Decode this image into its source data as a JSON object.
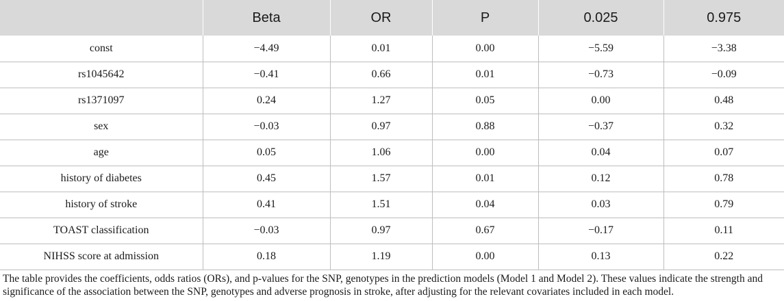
{
  "table": {
    "headers": [
      "",
      "Beta",
      "OR",
      "P",
      "0.025",
      "0.975"
    ],
    "rows": [
      [
        "const",
        "−4.49",
        "0.01",
        "0.00",
        "−5.59",
        "−3.38"
      ],
      [
        "rs1045642",
        "−0.41",
        "0.66",
        "0.01",
        "−0.73",
        "−0.09"
      ],
      [
        "rs1371097",
        "0.24",
        "1.27",
        "0.05",
        "0.00",
        "0.48"
      ],
      [
        "sex",
        "−0.03",
        "0.97",
        "0.88",
        "−0.37",
        "0.32"
      ],
      [
        "age",
        "0.05",
        "1.06",
        "0.00",
        "0.04",
        "0.07"
      ],
      [
        "history of diabetes",
        "0.45",
        "1.57",
        "0.01",
        "0.12",
        "0.78"
      ],
      [
        "history of stroke",
        "0.41",
        "1.51",
        "0.04",
        "0.03",
        "0.79"
      ],
      [
        "TOAST classification",
        "−0.03",
        "0.97",
        "0.67",
        "−0.17",
        "0.11"
      ],
      [
        "NIHSS score at admission",
        "0.18",
        "1.19",
        "0.00",
        "0.13",
        "0.22"
      ]
    ]
  },
  "caption": "The table provides the coefficients, odds ratios (ORs), and p-values for the SNP, genotypes in the prediction models (Model 1 and Model 2). These values indicate the strength and significance of the association between the SNP, genotypes and adverse prognosis in stroke, after adjusting for the relevant covariates included in each model."
}
